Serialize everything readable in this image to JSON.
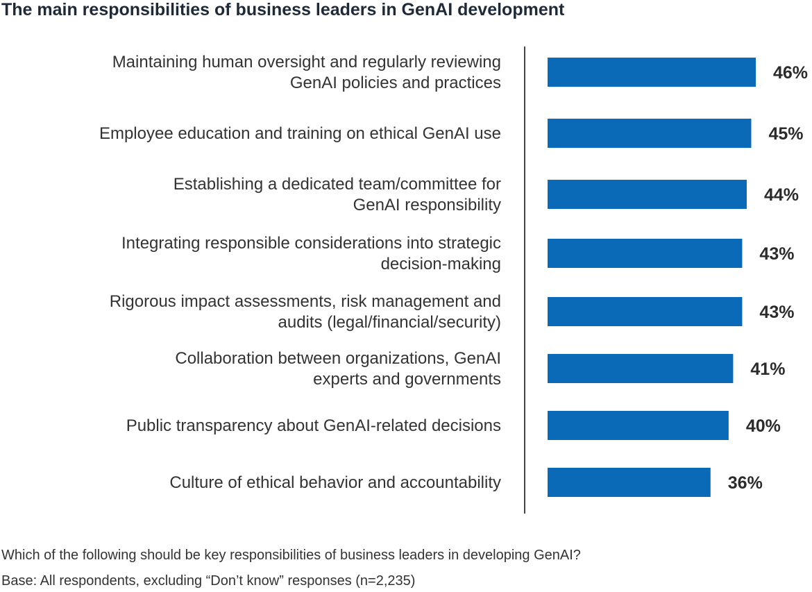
{
  "chart_data": {
    "type": "bar",
    "orientation": "horizontal",
    "title": "The main responsibilities of business leaders in GenAI development",
    "categories": [
      [
        "Maintaining human oversight and regularly reviewing",
        "GenAI policies and practices"
      ],
      [
        "Employee education and training on ethical GenAI use"
      ],
      [
        "Establishing a dedicated team/committee for",
        "GenAI responsibility"
      ],
      [
        "Integrating responsible considerations into strategic",
        "decision-making"
      ],
      [
        "Rigorous impact assessments, risk management and",
        "audits (legal/financial/security)"
      ],
      [
        "Collaboration between organizations, GenAI",
        "experts and governments"
      ],
      [
        "Public transparency about GenAI-related decisions"
      ],
      [
        "Culture of ethical behavior and accountability"
      ]
    ],
    "values": [
      46,
      45,
      44,
      43,
      43,
      41,
      40,
      36
    ],
    "value_labels": [
      "46%",
      "45%",
      "44%",
      "43%",
      "43%",
      "41%",
      "40%",
      "36%"
    ],
    "xlim": [
      0,
      46
    ],
    "grid": false,
    "bar_color": "#0a6ab8"
  },
  "footnotes": {
    "question": "Which of the following should be key responsibilities of business leaders in developing GenAI?",
    "base": "Base: All respondents, excluding “Don’t know” responses (n=2,235)"
  }
}
